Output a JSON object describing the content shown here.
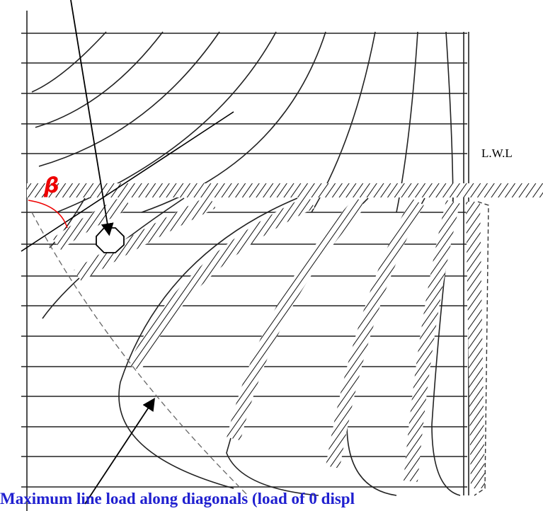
{
  "labels": {
    "waterline": "L.W.L",
    "angle": "β",
    "caption": "Maximum line load along diagonals (load of 0 displ"
  }
}
